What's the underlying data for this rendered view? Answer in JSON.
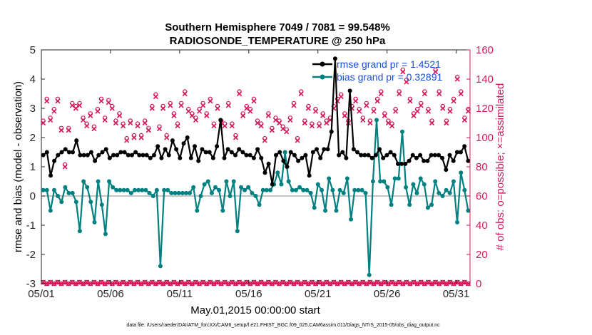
{
  "chart_data": {
    "type": "line",
    "title": "Southern Hemisphere 7049 / 7081 = 99.548%",
    "subtitle": "RADIOSONDE_TEMPERATURE @ 250 hPa",
    "xlabel": "May.01,2015 00:00:00 start",
    "ylabel_left": "rmse and bias (model - observation)",
    "ylabel_right": "# of obs: o=possible; ×=assimilated",
    "footer": "data file: /Users/raeder/DAI/ATM_forcXX/CAM6_setup/f.e21.FHIST_BGC.f09_025.CAM6assim.011/Diags_NTrS_2015-05/obs_diag_output.nc",
    "x_ticks": [
      "05/01",
      "05/06",
      "05/11",
      "05/16",
      "05/21",
      "05/26",
      "05/31"
    ],
    "x_tick_days": [
      1,
      6,
      11,
      16,
      21,
      26,
      31
    ],
    "x_range": [
      1,
      32
    ],
    "ylim_left": [
      -3,
      5
    ],
    "yticks_left": [
      "-3",
      "-2",
      "-1",
      "0",
      "1",
      "2",
      "3",
      "4",
      "5"
    ],
    "ylim_right": [
      0,
      160
    ],
    "yticks_right": [
      "0",
      "20",
      "40",
      "60",
      "80",
      "100",
      "120",
      "140",
      "160"
    ],
    "zero_line": 0,
    "colors": {
      "rmse": "#000000",
      "bias": "#008080",
      "obs": "#d6195a",
      "legend_text": "#1a4fd6",
      "zero_line": "#b0b0b0"
    },
    "series": [
      {
        "name": "rmse grand pr = 1.4521",
        "axis": "left",
        "values": [
          1.4,
          1.5,
          0.7,
          1.2,
          1.4,
          1.5,
          1.6,
          1.5,
          1.5,
          1.9,
          1.4,
          1.4,
          1.4,
          1.5,
          1.2,
          1.4,
          1.5,
          1.6,
          1.3,
          1.4,
          1.4,
          1.5,
          1.5,
          1.4,
          1.4,
          1.5,
          1.4,
          1.4,
          1.4,
          1.3,
          1.4,
          1.7,
          1.3,
          1.6,
          1.4,
          1.9,
          1.6,
          1.3,
          1.8,
          2.0,
          1.3,
          1.7,
          1.2,
          1.6,
          1.5,
          1.5,
          1.3,
          1.7,
          2.6,
          1.3,
          1.6,
          1.5,
          1.4,
          1.6,
          1.5,
          1.4,
          1.4,
          1.3,
          1.6,
          1.3,
          0.8,
          1.1,
          0.4,
          1.4,
          1.5,
          1.2,
          1.0,
          1.5,
          1.4,
          1.2,
          1.3,
          1.4,
          0.7,
          1.5,
          1.6,
          1.3,
          1.6,
          1.6,
          2.2,
          4.7,
          1.4,
          1.5,
          1.3,
          3.6,
          1.6,
          1.5,
          1.4,
          1.4,
          1.4,
          1.3,
          1.4,
          1.6,
          1.3,
          1.4,
          1.5,
          1.4,
          1.1,
          1.1,
          1.1,
          1.2,
          1.4,
          1.3,
          1.4,
          1.2,
          1.2,
          1.4,
          1.4,
          1.4,
          1.3,
          0.9,
          1.4,
          1.2,
          1.5,
          1.5,
          1.7,
          1.2
        ]
      },
      {
        "name": "bias grand pr = 0.32891",
        "axis": "left",
        "values": [
          0.2,
          0.2,
          -0.5,
          0.2,
          0.0,
          -0.2,
          0.3,
          0.1,
          0.1,
          -0.2,
          -1.2,
          0.5,
          0.3,
          -0.2,
          -0.9,
          0.5,
          -0.3,
          -1.3,
          0.5,
          0.3,
          0.2,
          0.2,
          0.2,
          0.2,
          0.1,
          0.2,
          0.2,
          0.2,
          0.2,
          0.1,
          0.0,
          0.2,
          -2.4,
          0.2,
          0.2,
          0.1,
          0.1,
          0.1,
          0.1,
          0.1,
          0.1,
          0.3,
          -0.5,
          0.0,
          0.4,
          0.5,
          0.1,
          0.3,
          0.2,
          -0.5,
          0.5,
          0.0,
          0.5,
          -1.2,
          0.3,
          0.2,
          0.3,
          0.1,
          0.0,
          -0.3,
          0.2,
          0.2,
          0.2,
          0.4,
          0.8,
          0.4,
          1.5,
          0.5,
          0.2,
          0.2,
          0.3,
          0.2,
          0.2,
          0.1,
          -0.4,
          0.4,
          0.2,
          -0.5,
          0.6,
          0.2,
          -0.5,
          0.2,
          0.1,
          0.6,
          -0.8,
          0.2,
          0.2,
          0.2,
          0.1,
          -2.7,
          0.5,
          2.6,
          0.5,
          0.5,
          0.3,
          -0.3,
          0.6,
          0.6,
          2.2,
          0.3,
          -0.3,
          0.4,
          0.1,
          0.6,
          0.4,
          -0.4,
          -0.3,
          0.5,
          0.1,
          0.0,
          0.2,
          0.1,
          0.5,
          -0.9,
          0.8,
          0.2,
          -0.5
        ]
      },
      {
        "name": "possible",
        "axis": "right",
        "marker": "o",
        "values": [
          110,
          125,
          112,
          118,
          125,
          105,
          80,
          105,
          122,
          120,
          122,
          112,
          108,
          115,
          106,
          118,
          125,
          112,
          124,
          120,
          110,
          115,
          108,
          98,
          110,
          100,
          108,
          100,
          110,
          105,
          120,
          128,
          106,
          120,
          100,
          122,
          115,
          108,
          122,
          130,
          118,
          115,
          112,
          118,
          122,
          115,
          125,
          108,
          120,
          110,
          108,
          122,
          108,
          100,
          130,
          115,
          120,
          118,
          125,
          110,
          108,
          98,
          115,
          105,
          112,
          110,
          106,
          104,
          112,
          122,
          98,
          130,
          110,
          120,
          108,
          118,
          108,
          115,
          110,
          112,
          120,
          125,
          128,
          115,
          110,
          120,
          125,
          118,
          112,
          122,
          110,
          118,
          125,
          130,
          115,
          110,
          108,
          118,
          130,
          145,
          138,
          125,
          115,
          118,
          122,
          130,
          118,
          110,
          145,
          130,
          120,
          110,
          118,
          125,
          140,
          130,
          112,
          118
        ]
      }
    ]
  }
}
